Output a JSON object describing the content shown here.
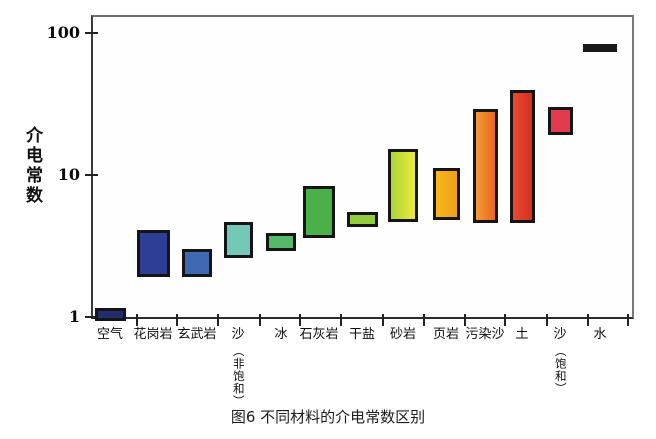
{
  "chart_data": {
    "type": "bar",
    "subtype": "floating-range-bars",
    "title": "图6 不同材料的介电常数区别",
    "ylabel": "介电常数",
    "xlabel": "",
    "y_scale": "log",
    "ylim": [
      1,
      100
    ],
    "y_ticks": [
      100,
      10,
      1
    ],
    "grid": false,
    "legend": "none",
    "categories": [
      "空气",
      "花岗岩",
      "玄武岩",
      "沙（非饱和）",
      "冰",
      "石灰岩",
      "干盐",
      "砂岩",
      "页岩",
      "污染沙",
      "土",
      "沙（饱和）",
      "水"
    ],
    "series": [
      {
        "label": "空气",
        "sub": "",
        "lo": 0.93,
        "hi": 1.15,
        "fill": "#222c6e"
      },
      {
        "label": "花岗岩",
        "sub": "",
        "lo": 1.9,
        "hi": 4.1,
        "fill": "#2e3e97"
      },
      {
        "label": "玄武岩",
        "sub": "",
        "lo": 1.9,
        "hi": 3.0,
        "fill": "#3e68b2"
      },
      {
        "label": "沙",
        "sub": "非饱和",
        "lo": 2.6,
        "hi": 4.7,
        "fill": "#74c9b6"
      },
      {
        "label": "冰",
        "sub": "",
        "lo": 2.9,
        "hi": 3.9,
        "fill": "#55b969"
      },
      {
        "label": "石灰岩",
        "sub": "",
        "lo": 3.6,
        "hi": 8.3,
        "fill": "#4cb04a"
      },
      {
        "label": "干盐",
        "sub": "",
        "lo": 4.3,
        "hi": 5.5,
        "fill": "#97cb3e"
      },
      {
        "label": "砂岩",
        "sub": "",
        "lo": 4.7,
        "hi": 15.2,
        "fill": [
          "#a9d53a",
          "#eeea3b"
        ]
      },
      {
        "label": "页岩",
        "sub": "",
        "lo": 4.8,
        "hi": 11.2,
        "fill": [
          "#f7b71e",
          "#f09f15"
        ]
      },
      {
        "label": "污染沙",
        "sub": "",
        "lo": 4.6,
        "hi": 29,
        "fill": [
          "#f49a3a",
          "#e8671c"
        ]
      },
      {
        "label": "土",
        "sub": "",
        "lo": 4.6,
        "hi": 40,
        "fill": [
          "#e84a32",
          "#d5301f"
        ]
      },
      {
        "label": "沙",
        "sub": "饱和",
        "lo": 19,
        "hi": 30,
        "fill": "#e23a4e"
      },
      {
        "label": "水",
        "sub": "",
        "lo": 73,
        "hi": 84,
        "fill": "#1a1a1a",
        "no_border": true
      }
    ]
  }
}
